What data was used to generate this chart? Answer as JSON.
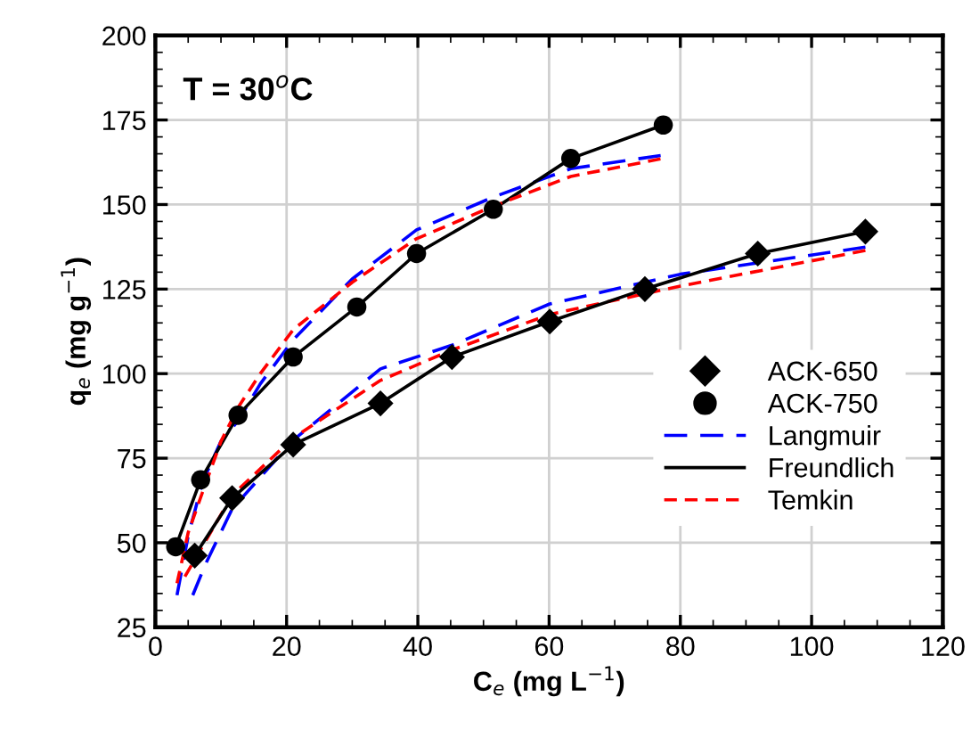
{
  "chart_data": {
    "type": "line",
    "xlabel": "C$_{e}$ (mg L$^{−1}$)",
    "ylabel": "q$_{e}$ (mg g$^{−1}$)",
    "annotations": [
      "T = 30$^{o}$C"
    ],
    "xlim": [
      0,
      120
    ],
    "xticks": [
      0,
      20,
      40,
      60,
      80,
      100,
      120
    ],
    "ylim": [
      25,
      200
    ],
    "yticks": [
      25,
      50,
      75,
      100,
      125,
      150,
      175,
      200
    ],
    "grid": true,
    "legend": "right",
    "series": [
      {
        "line_style": "dashed",
        "color": "#0000ff",
        "name": "Langmuir",
        "x": [
          3.3,
          5,
          7.2,
          10,
          12.6,
          16,
          21,
          30,
          39.8,
          51.5,
          63.3,
          77
        ],
        "values": [
          34.5,
          52,
          68,
          80,
          86,
          97,
          110,
          128,
          142.5,
          152.2,
          160.6,
          164.5
        ]
      },
      {
        "line_style": "solid",
        "color": "#000000",
        "name": "Freundlich",
        "x": [
          3.1,
          6.9,
          12.6,
          21,
          30.7,
          39.8,
          51.5,
          63.3,
          77.4
        ],
        "values": [
          48.8,
          68.6,
          87.7,
          104.9,
          119.7,
          135.5,
          148.6,
          163.6,
          173.5
        ]
      },
      {
        "line_style": "dashed",
        "color": "#ff0000",
        "name": "Temkin",
        "x": [
          3.3,
          5,
          7.2,
          10,
          12.6,
          16,
          21,
          30,
          39.8,
          51.5,
          63.3,
          77
        ],
        "values": [
          38,
          53,
          65,
          80,
          90,
          100,
          113,
          127,
          139.9,
          149.5,
          158.3,
          163.5
        ]
      },
      {
        "line_style": "dashed",
        "color": "#0000ff",
        "x": [
          5.7,
          7.6,
          11.7,
          21,
          34.3,
          45.2,
          60.1,
          80,
          108.2
        ],
        "values": [
          34.5,
          43.5,
          60,
          80.3,
          101.4,
          108.4,
          120.6,
          129.4,
          137.4
        ]
      },
      {
        "line_style": "dashed",
        "color": "#ff0000",
        "x": [
          4.5,
          7.5,
          11.7,
          21,
          34.3,
          45.2,
          60.1,
          80,
          108.2
        ],
        "values": [
          40,
          50,
          64,
          81,
          98,
          107,
          117.5,
          125.9,
          136.4
        ]
      },
      {
        "line_style": "solid",
        "color": "#000000",
        "x": [
          6,
          11.7,
          21,
          34.3,
          45.2,
          60.1,
          74.6,
          91.8,
          108.2
        ],
        "values": [
          46.2,
          63.2,
          79,
          91.2,
          104.9,
          115.4,
          125,
          135.5,
          142
        ]
      },
      {
        "type": "scatter",
        "marker": "diamond",
        "color": "#000000",
        "name": "ACK-650",
        "x": [
          6,
          11.7,
          21,
          34.3,
          45.2,
          60.1,
          74.6,
          91.8,
          108.2
        ],
        "values": [
          46.2,
          63.2,
          79,
          91.2,
          104.9,
          115.4,
          125,
          135.5,
          142
        ]
      },
      {
        "type": "scatter",
        "marker": "circle",
        "color": "#000000",
        "name": "ACK-750",
        "x": [
          3.1,
          6.9,
          12.6,
          21,
          30.7,
          39.8,
          51.5,
          63.3,
          77.4
        ],
        "values": [
          48.8,
          68.6,
          87.7,
          104.9,
          119.7,
          135.5,
          148.6,
          163.6,
          173.5
        ]
      }
    ]
  }
}
